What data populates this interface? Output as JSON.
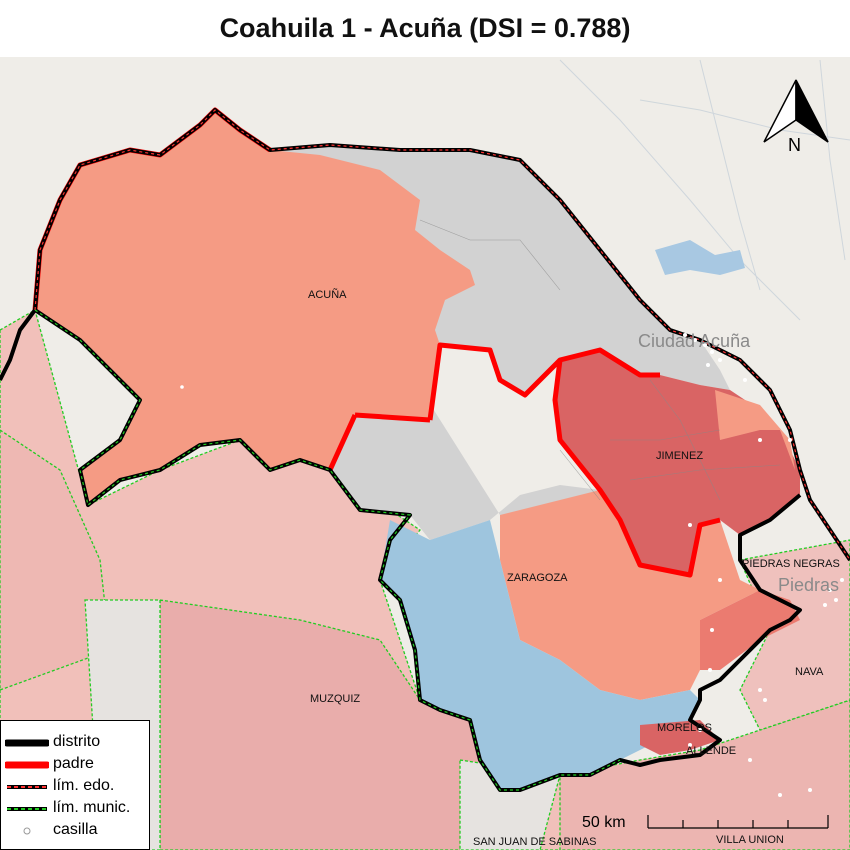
{
  "title": "Coahuila 1 - Acuña (DSI = 0.788)",
  "colors": {
    "acuna": "#f59b84",
    "jimenez": "#d96464",
    "zaragoza": "#f59b84",
    "blue_region": "#9ec5de",
    "gray_region": "#d2d2d2",
    "background_muni": "#f1c0ba",
    "distrito": "#000000",
    "padre": "#ff0000",
    "lim_munic": "#22cc22"
  },
  "labels": {
    "acuna": "ACUÑA",
    "jimenez": "JIMENEZ",
    "zaragoza": "ZARAGOZA",
    "muzquiz": "MUZQUIZ",
    "piedras_negras": "PIEDRAS NEGRAS",
    "nava": "NAVA",
    "morelos": "MORELOS",
    "allende": "ALLENDE",
    "san_juan": "SAN JUAN DE SABINAS",
    "villa_union": "VILLA UNION",
    "city_acuna": "Ciudad Acuña",
    "city_piedras": "Piedras"
  },
  "north_arrow": {
    "label": "N",
    "icon": "north-arrow-icon"
  },
  "scale_bar": {
    "label": "50 km"
  },
  "legend": [
    {
      "label": "distrito",
      "icon": "distrito-line-icon"
    },
    {
      "label": "padre",
      "icon": "padre-line-icon"
    },
    {
      "label": "lím. edo.",
      "icon": "state-limit-line-icon"
    },
    {
      "label": "lím. munic.",
      "icon": "municipal-limit-line-icon"
    },
    {
      "label": "casilla",
      "icon": "casilla-point-icon"
    }
  ]
}
